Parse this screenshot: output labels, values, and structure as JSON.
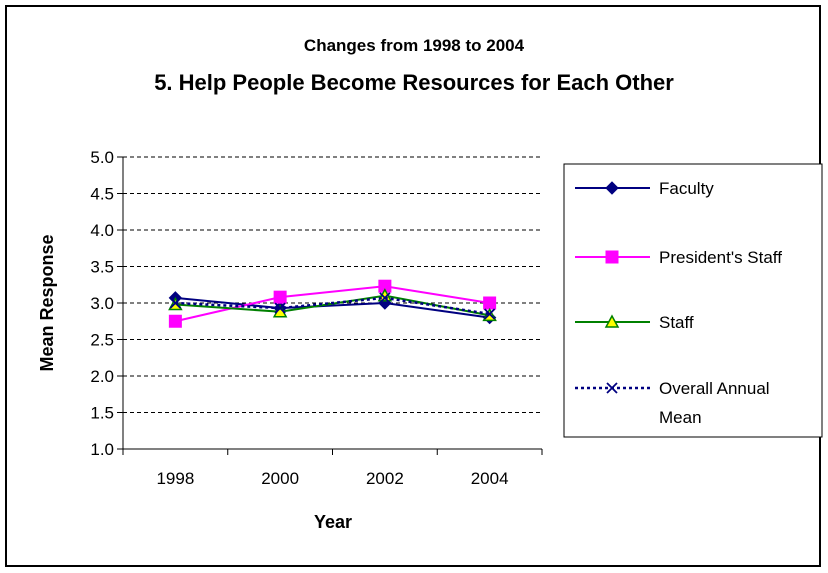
{
  "chart_data": {
    "type": "line",
    "title": "5.  Help People Become Resources for Each Other",
    "subtitle": "Changes from 1998 to 2004",
    "xlabel": "Year",
    "ylabel": "Mean Response",
    "categories": [
      "1998",
      "2000",
      "2002",
      "2004"
    ],
    "ylim": [
      1.0,
      5.0
    ],
    "yticks": [
      "1.0",
      "1.5",
      "2.0",
      "2.5",
      "3.0",
      "3.5",
      "4.0",
      "4.5",
      "5.0"
    ],
    "grid": "horizontal dashed",
    "legend_position": "right",
    "series": [
      {
        "name": "Faculty",
        "values": [
          3.07,
          2.93,
          3.0,
          2.8
        ],
        "color": "#000080",
        "marker": "diamond",
        "line": "solid"
      },
      {
        "name": "President's Staff",
        "values": [
          2.75,
          3.08,
          3.23,
          3.0
        ],
        "color": "#ff00ff",
        "marker": "square",
        "line": "solid"
      },
      {
        "name": "Staff",
        "values": [
          2.98,
          2.88,
          3.1,
          2.83
        ],
        "color": "#008000",
        "marker": "triangle",
        "line": "solid"
      },
      {
        "name": "Overall Annual Mean",
        "values": [
          3.0,
          2.93,
          3.07,
          2.85
        ],
        "color": "#000080",
        "marker": "x",
        "line": "dotted"
      }
    ]
  }
}
